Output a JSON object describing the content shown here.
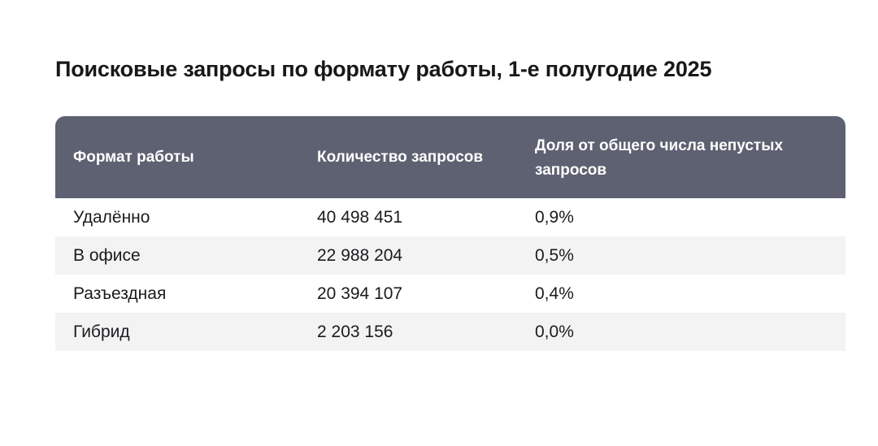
{
  "chart_data": {
    "type": "table",
    "title": "Поисковые запросы по формату работы, 1-е полугодие 2025",
    "columns": [
      "Формат работы",
      "Количество запросов",
      "Доля от общего числа непустых запросов"
    ],
    "rows": [
      {
        "format": "Удалённо",
        "count": "40 498 451",
        "share": "0,9%"
      },
      {
        "format": "В офисе",
        "count": "22 988 204",
        "share": "0,5%"
      },
      {
        "format": "Разъездная",
        "count": "20 394 107",
        "share": "0,4%"
      },
      {
        "format": "Гибрид",
        "count": "2 203 156",
        "share": "0,0%"
      }
    ]
  },
  "colors": {
    "header_background": "#5d6171",
    "header_text": "#ffffff",
    "row_stripe": "#f3f3f4",
    "text": "#1b1b1f"
  }
}
